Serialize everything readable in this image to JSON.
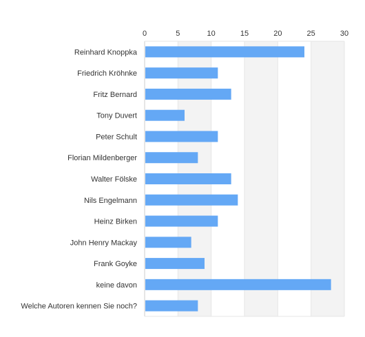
{
  "chart_data": {
    "type": "bar",
    "orientation": "horizontal",
    "title": "",
    "xlabel": "",
    "ylabel": "",
    "xlim": [
      0,
      30
    ],
    "x_ticks": [
      0,
      5,
      10,
      15,
      20,
      25,
      30
    ],
    "x_axis_position": "top",
    "grid": true,
    "alternating_bands": true,
    "colors": {
      "bar": "#64a8f5",
      "band": "#f3f3f3",
      "grid": "#e6e6e6",
      "axis": "#cccccc",
      "text": "#333333"
    },
    "categories": [
      "Reinhard Knoppka",
      "Friedrich Kröhnke",
      "Fritz Bernard",
      "Tony Duvert",
      "Peter Schult",
      "Florian Mildenberger",
      "Walter Fölske",
      "Nils Engelmann",
      "Heinz Birken",
      "John Henry Mackay",
      "Frank Goyke",
      "keine davon",
      "Welche Autoren kennen Sie noch?"
    ],
    "values": [
      24,
      11,
      13,
      6,
      11,
      8,
      13,
      14,
      11,
      7,
      9,
      28,
      8
    ]
  }
}
